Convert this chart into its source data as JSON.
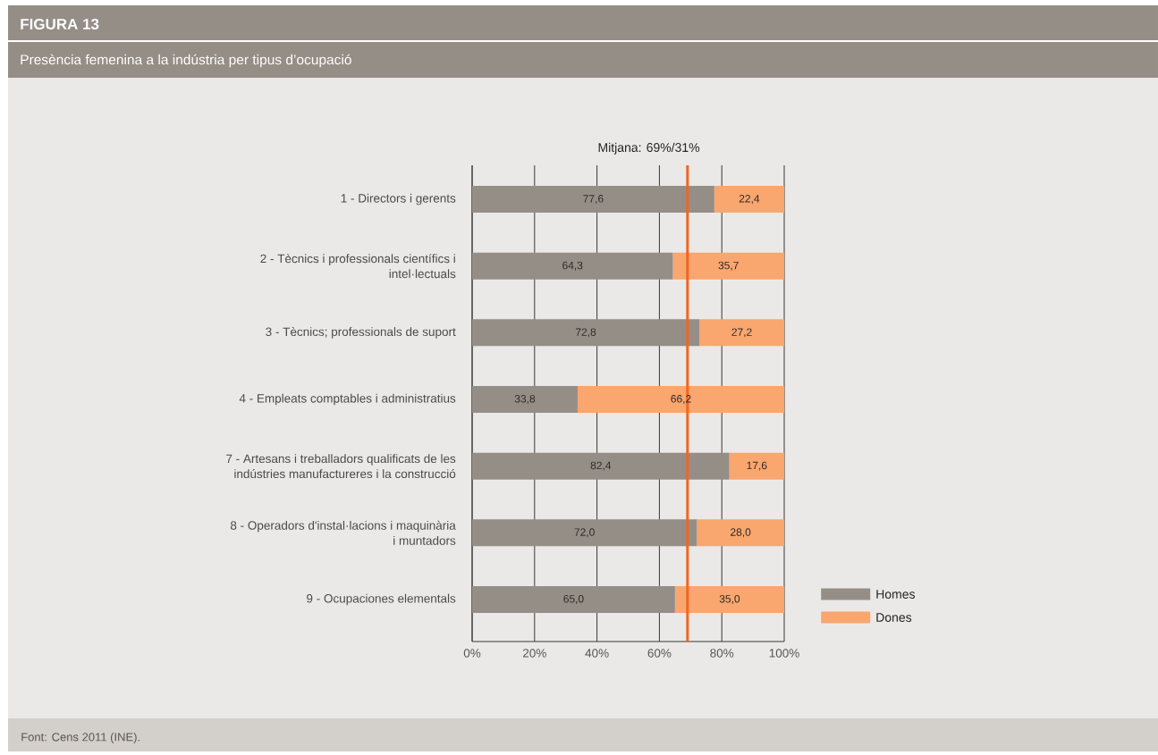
{
  "chart_data": {
    "type": "bar",
    "orientation": "horizontal",
    "stacked": true,
    "title": "FIGURA 13",
    "subtitle": "Presència femenina a la indústria per tipus  d’ocupació",
    "categories": [
      "1 - Directors i gerents",
      "2 - Tècnics i professionals científics i intel·lectuals",
      "3 - Tècnics; professionals de suport",
      "4 - Empleats comptables i administratius",
      "7 - Artesans i treballadors qualificats de les indústries manufactureres i la construcció",
      "8 - Operadors d'instal·lacions i maquinària i muntadors",
      "9 - Ocupaciones elementals"
    ],
    "series": [
      {
        "name": "Homes",
        "color": "#958e87",
        "values": [
          77.6,
          64.3,
          72.8,
          33.8,
          82.4,
          72.0,
          65.0
        ],
        "value_labels": [
          "77,6",
          "64,3",
          "72,8",
          "33,8",
          "82,4",
          "72,0",
          "65,0"
        ]
      },
      {
        "name": "Dones",
        "color": "#f9a66f",
        "values": [
          22.4,
          35.7,
          27.2,
          66.2,
          17.6,
          28.0,
          35.0
        ],
        "value_labels": [
          "22,4",
          "35,7",
          "27,2",
          "66,2",
          "17,6",
          "28,0",
          "35,0"
        ]
      }
    ],
    "xlim": [
      0,
      100
    ],
    "xticks": [
      {
        "value": 0,
        "label": "0%"
      },
      {
        "value": 20,
        "label": "20%"
      },
      {
        "value": 40,
        "label": "40%"
      },
      {
        "value": 60,
        "label": "60%"
      },
      {
        "value": 80,
        "label": "80%"
      },
      {
        "value": 100,
        "label": "100%"
      }
    ],
    "grid": "x",
    "legend": "bottom right",
    "ref_lines": [
      {
        "axis": "x",
        "value": 69,
        "label": "Mitjana: 69%/31%",
        "color": "#f26522"
      }
    ],
    "annotations": [
      "Font: Cens 2011 (INE)."
    ]
  }
}
